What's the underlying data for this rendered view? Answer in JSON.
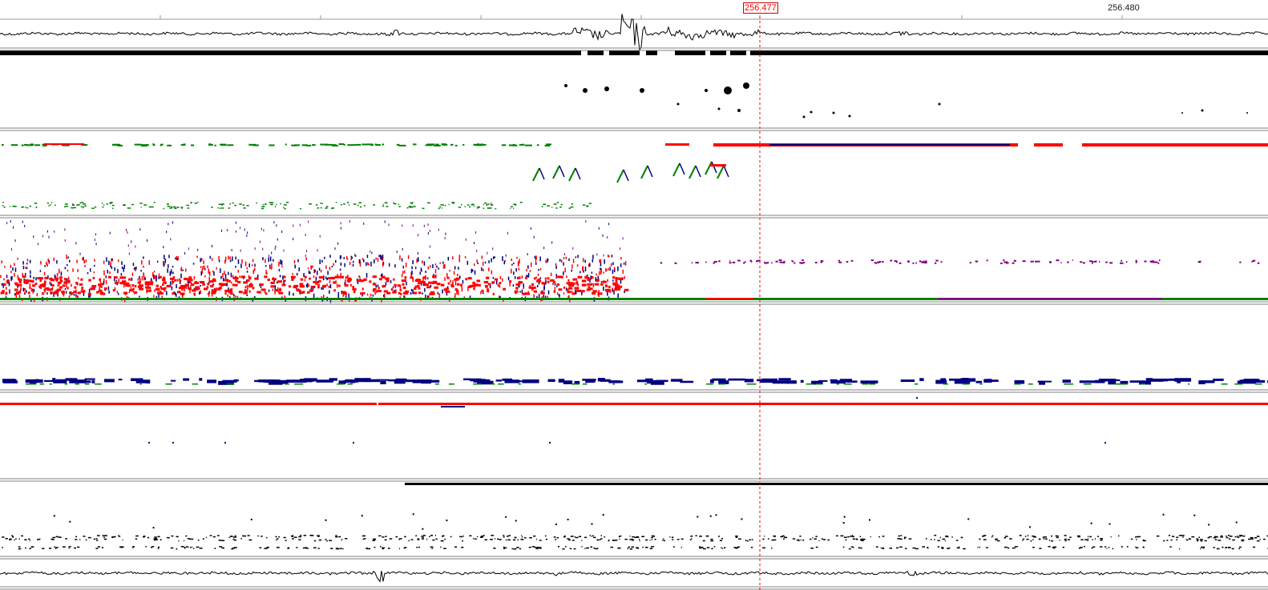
{
  "ruler": {
    "labels": [
      {
        "text": "256.480"
      }
    ]
  },
  "cursor": {
    "label": "256.477",
    "color": "#ff0000"
  },
  "colors": {
    "background": "#ffffff",
    "waveform": "#000000",
    "divider": "#808080",
    "red_markers": "#ff0000",
    "blue_markers": "#000080",
    "green_markers": "#008000",
    "purple_markers": "#800080"
  },
  "tracks": [
    {
      "id": "top-waveform",
      "kind": "waveform"
    },
    {
      "id": "black-event-track",
      "kind": "events"
    },
    {
      "id": "red-green-track",
      "kind": "events"
    },
    {
      "id": "dense-multicolor-track",
      "kind": "events"
    },
    {
      "id": "blue-track",
      "kind": "events"
    },
    {
      "id": "red-line-track",
      "kind": "events"
    },
    {
      "id": "black-dots-track",
      "kind": "events"
    },
    {
      "id": "bottom-waveform",
      "kind": "waveform"
    }
  ]
}
